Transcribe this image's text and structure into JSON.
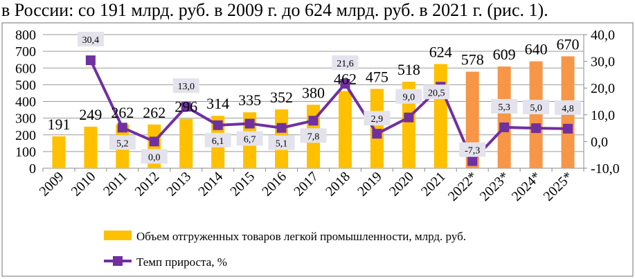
{
  "document": {
    "text_line": "в России: со 191 млрд. руб. в 2009 г. до 624 млрд. руб. в 2021 г. (рис. 1)."
  },
  "chart_data": {
    "type": "bar+line",
    "categories": [
      "2009",
      "2010",
      "2011",
      "2012",
      "2013",
      "2014",
      "2015",
      "2016",
      "2017",
      "2018",
      "2019",
      "2020",
      "2021",
      "2022*",
      "2023*",
      "2024*",
      "2025*"
    ],
    "series": [
      {
        "name": "Объем отгруженных товаров легкой промышленности, млрд. руб.",
        "type": "bar",
        "axis": "left",
        "values": [
          191,
          249,
          262,
          262,
          296,
          314,
          335,
          352,
          380,
          462,
          475,
          518,
          624,
          578,
          609,
          640,
          670
        ],
        "labels": [
          "191",
          "249",
          "262",
          "262",
          "296",
          "314",
          "335",
          "352",
          "380",
          "462",
          "475",
          "518",
          "624",
          "578",
          "609",
          "640",
          "670"
        ],
        "color": "#FFC000",
        "forecast_color": "#F79646"
      },
      {
        "name": "Темп прироста, %",
        "type": "line",
        "axis": "right",
        "values": [
          null,
          30.4,
          5.2,
          0.0,
          13.0,
          6.1,
          6.7,
          5.1,
          7.8,
          21.6,
          2.9,
          9.0,
          20.5,
          -7.3,
          5.3,
          5.0,
          4.8
        ],
        "labels": [
          "",
          "30,4",
          "5,2",
          "0,0",
          "13,0",
          "6,1",
          "6,7",
          "5,1",
          "7,8",
          "21,6",
          "2,9",
          "9,0",
          "20,5",
          "-7,3",
          "5,3",
          "5,0",
          "4,8"
        ],
        "color": "#7030A0"
      }
    ],
    "left_axis": {
      "range": [
        0,
        800
      ],
      "ticks": [
        "0",
        "100",
        "200",
        "300",
        "400",
        "500",
        "600",
        "700",
        "800"
      ]
    },
    "right_axis": {
      "range": [
        -10,
        40
      ],
      "ticks": [
        "-10,0",
        "0,0",
        "10,0",
        "20,0",
        "30,0",
        "40,0"
      ]
    },
    "grid": true,
    "legend_placement": "bottom"
  }
}
